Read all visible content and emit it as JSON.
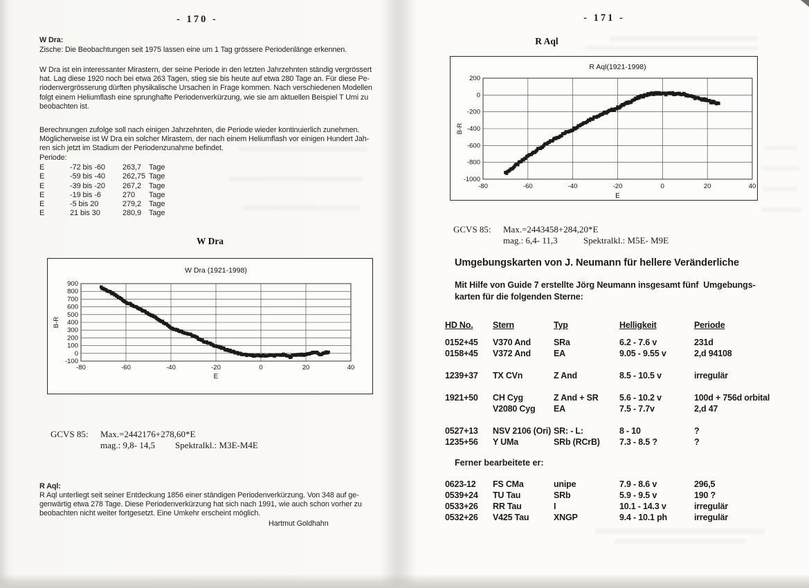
{
  "left_page": {
    "page_number": "- 170 -",
    "w_dra": {
      "heading": "W Dra:",
      "intro": "Zische: Die Beobachtungen seit 1975 lassen eine um 1 Tag grössere Periodenlänge erkennen.",
      "para1": "W Dra ist ein interessanter Mirastern, der seine Periode in den letzten Jahrzehnten ständig vergrössert\nhat. Lag diese 1920 noch bei etwa 263 Tagen, stieg sie bis heute auf etwa 280 Tage an. Für diese Pe-\nriodenvergrösserung dürften physikalische Ursachen in Frage kommen. Nach verschiedenen Modellen\nfolgt einem Heliumflash eine sprunghafte Periodenverkürzung, wie sie am aktuellen Beispiel T Umi zu\nbeobachten ist.",
      "para2": "Berechnungen zufolge soll nach einigen Jahrzehnten, die Periode wieder kontinuierlich zunehmen.\nMöglicherweise ist W Dra ein solcher Mirastern, der nach einem Heliumflash vor einigen Hundert Jah-\nren sich jetzt im Stadium der Periodenzunahme befindet.",
      "periode_label": "Periode:",
      "periods": [
        {
          "e": "E",
          "range": "-72 bis -60",
          "value": "263,7",
          "unit": "Tage"
        },
        {
          "e": "E",
          "range": "-59 bis -40",
          "value": "262,75",
          "unit": "Tage"
        },
        {
          "e": "E",
          "range": "-39 bis -20",
          "value": "267,2",
          "unit": "Tage"
        },
        {
          "e": "E",
          "range": "-19 bis -6",
          "value": "270",
          "unit": "Tage"
        },
        {
          "e": "E",
          "range": "-5 bis 20",
          "value": "279,2",
          "unit": "Tage"
        },
        {
          "e": "E",
          "range": "21 bis 30",
          "value": "280,9",
          "unit": "Tage"
        }
      ],
      "gcvs": {
        "label": "GCVS 85:",
        "max": "Max.=2442176+278,60*E",
        "mag": "mag.: 9,8- 14,5",
        "spektral": "Spektralkl.: M3E-M4E"
      }
    },
    "r_aql": {
      "heading": "R Aql:",
      "text": "R Aql unterliegt seit seiner Entdeckung 1856 einer ständigen Periodenverkürzung. Von 348 auf ge-\ngenwärtig etwa 278 Tage. Diese Periodenverkürzung hat sich nach 1991, wie auch schon vorher zu\nbeobachten nicht weiter fortgesetzt. Eine Umkehr erscheint möglich.",
      "signature": "Hartmut Goldhahn"
    }
  },
  "right_page": {
    "page_number": "- 171 -",
    "gcvs": {
      "label": "GCVS 85:",
      "max": "Max.=2443458+284,20*E",
      "mag": "mag.: 6,4- 11,3",
      "spektral": "Spektralkl.: M5E- M9E"
    },
    "umgebungskarten": {
      "heading": "Umgebungskarten von J. Neumann für hellere Veränderliche",
      "intro": "Mit Hilfe von Guide 7 erstellte Jörg Neumann insgesamt fünf  Umgebungs-\nkarten für die folgenden Sterne:",
      "headers": {
        "hd": "HD No.",
        "stern": "Stern",
        "typ": "Typ",
        "helligkeit": "Helligkeit",
        "periode": "Periode"
      },
      "stars": [
        {
          "hd": "0152+45",
          "stern": "V370 And",
          "typ": "SRa",
          "helligkeit": "6.2 - 7.6 v",
          "periode": "231d"
        },
        {
          "hd": "0158+45",
          "stern": "V372 And",
          "typ": "EA",
          "helligkeit": "9.05 - 9.55 v",
          "periode": "2,d 94108"
        },
        {
          "hd": "1239+37",
          "stern": "TX CVn",
          "typ": "Z And",
          "helligkeit": "8.5 - 10.5 v",
          "periode": "irregulär",
          "gap": true
        },
        {
          "hd": "1921+50",
          "stern": "CH Cyg",
          "typ": "Z And + SR",
          "helligkeit": "5.6 - 10.2 v",
          "periode": "100d + 756d orbital",
          "gap": true
        },
        {
          "hd": "",
          "stern": "V2080 Cyg",
          "typ": "EA",
          "helligkeit": "7.5 - 7.7v",
          "periode": "2,d 47"
        },
        {
          "hd": "0527+13",
          "stern": "NSV 2106 (Ori)",
          "typ": "SR: - L:",
          "helligkeit": "8 - 10",
          "periode": "?",
          "gap": true
        },
        {
          "hd": "1235+56",
          "stern": "Y UMa",
          "typ": "SRb (RCrB)",
          "helligkeit": "7.3 - 8.5 ?",
          "periode": "?"
        }
      ],
      "ferner_label": "Ferner bearbeitete er:",
      "more_stars": [
        {
          "hd": "0623-12",
          "stern": "FS CMa",
          "typ": "unipe",
          "helligkeit": "7.9 - 8.6 v",
          "periode": "296,5"
        },
        {
          "hd": "0539+24",
          "stern": "TU Tau",
          "typ": "SRb",
          "helligkeit": "5.9 - 9.5 v",
          "periode": "190 ?"
        },
        {
          "hd": "0533+26",
          "stern": "RR Tau",
          "typ": "I",
          "helligkeit": "10.1 - 14.3 v",
          "periode": "irregulär"
        },
        {
          "hd": "0532+26",
          "stern": "V425 Tau",
          "typ": "XNGP",
          "helligkeit": "9.4 - 10.1 ph",
          "periode": "irregulär"
        }
      ]
    }
  },
  "chart_data": [
    {
      "type": "scatter",
      "page_heading": "W Dra",
      "title": "W Dra (1921-1998)",
      "xlabel": "E",
      "ylabel": "B-R",
      "xlim": [
        -80,
        40
      ],
      "ylim": [
        -100,
        900
      ],
      "xticks": [
        -80,
        -60,
        -40,
        -20,
        0,
        20,
        40
      ],
      "yticks": [
        900,
        800,
        700,
        600,
        500,
        400,
        300,
        200,
        100,
        0,
        -100
      ],
      "grid": true,
      "legend": "none",
      "marker_color": "#1b1b1b",
      "jitter": 16,
      "anchors": [
        [
          -71,
          850
        ],
        [
          -68,
          805
        ],
        [
          -65,
          755
        ],
        [
          -62,
          700
        ],
        [
          -60,
          660
        ],
        [
          -57,
          620
        ],
        [
          -55,
          585
        ],
        [
          -52,
          545
        ],
        [
          -50,
          515
        ],
        [
          -47,
          465
        ],
        [
          -45,
          430
        ],
        [
          -42,
          380
        ],
        [
          -40,
          330
        ],
        [
          -37,
          300
        ],
        [
          -35,
          278
        ],
        [
          -32,
          248
        ],
        [
          -30,
          225
        ],
        [
          -27,
          180
        ],
        [
          -25,
          150
        ],
        [
          -22,
          118
        ],
        [
          -20,
          95
        ],
        [
          -17,
          65
        ],
        [
          -15,
          45
        ],
        [
          -12,
          18
        ],
        [
          -10,
          0
        ],
        [
          -8,
          -15
        ],
        [
          -5,
          -25
        ],
        [
          -2,
          -30
        ],
        [
          0,
          -30
        ],
        [
          2,
          -28
        ],
        [
          4,
          -25
        ],
        [
          6,
          -28
        ],
        [
          8,
          -22
        ],
        [
          10,
          -18
        ],
        [
          12,
          -35
        ],
        [
          13,
          -45
        ],
        [
          14,
          -30
        ],
        [
          15,
          -20
        ],
        [
          17,
          -15
        ],
        [
          19,
          -22
        ],
        [
          20,
          -12
        ],
        [
          22,
          0
        ],
        [
          23,
          8
        ],
        [
          24,
          12
        ],
        [
          25,
          5
        ],
        [
          26,
          -8
        ],
        [
          27,
          -18
        ],
        [
          28,
          5
        ],
        [
          29,
          10
        ],
        [
          30,
          15
        ]
      ]
    },
    {
      "type": "scatter",
      "page_heading": "R Aql",
      "title": "R Aql(1921-1998)",
      "xlabel": "E",
      "ylabel": "B-R",
      "xlim": [
        -80,
        40
      ],
      "ylim": [
        -1000,
        200
      ],
      "xticks": [
        -80,
        -60,
        -40,
        -20,
        0,
        20,
        40
      ],
      "yticks": [
        200,
        0,
        -200,
        -400,
        -600,
        -800,
        -1000
      ],
      "grid": true,
      "legend": "none",
      "marker_color": "#1b1b1b",
      "jitter": 24,
      "anchors": [
        [
          -70,
          -930
        ],
        [
          -68,
          -890
        ],
        [
          -66,
          -850
        ],
        [
          -64,
          -810
        ],
        [
          -62,
          -770
        ],
        [
          -60,
          -725
        ],
        [
          -58,
          -688
        ],
        [
          -56,
          -655
        ],
        [
          -55,
          -640
        ],
        [
          -53,
          -605
        ],
        [
          -51,
          -572
        ],
        [
          -50,
          -555
        ],
        [
          -48,
          -520
        ],
        [
          -46,
          -490
        ],
        [
          -45,
          -475
        ],
        [
          -43,
          -445
        ],
        [
          -41,
          -420
        ],
        [
          -40,
          -408
        ],
        [
          -38,
          -375
        ],
        [
          -36,
          -345
        ],
        [
          -35,
          -330
        ],
        [
          -33,
          -300
        ],
        [
          -31,
          -275
        ],
        [
          -30,
          -260
        ],
        [
          -28,
          -238
        ],
        [
          -26,
          -216
        ],
        [
          -25,
          -206
        ],
        [
          -23,
          -184
        ],
        [
          -21,
          -164
        ],
        [
          -20,
          -153
        ],
        [
          -18,
          -124
        ],
        [
          -16,
          -98
        ],
        [
          -15,
          -86
        ],
        [
          -13,
          -60
        ],
        [
          -11,
          -36
        ],
        [
          -10,
          -24
        ],
        [
          -8,
          -4
        ],
        [
          -6,
          8
        ],
        [
          -5,
          15
        ],
        [
          -3,
          20
        ],
        [
          -1,
          18
        ],
        [
          0,
          15
        ],
        [
          2,
          12
        ],
        [
          3,
          15
        ],
        [
          5,
          18
        ],
        [
          6,
          12
        ],
        [
          8,
          8
        ],
        [
          9,
          12
        ],
        [
          10,
          5
        ],
        [
          11,
          0
        ],
        [
          12,
          -10
        ],
        [
          13,
          -18
        ],
        [
          14,
          -26
        ],
        [
          15,
          -35
        ],
        [
          16,
          -42
        ],
        [
          17,
          -48
        ],
        [
          18,
          -55
        ],
        [
          19,
          -60
        ],
        [
          20,
          -66
        ],
        [
          21,
          -75
        ],
        [
          22,
          -82
        ],
        [
          23,
          -88
        ],
        [
          24,
          -95
        ],
        [
          25,
          -100
        ]
      ]
    }
  ]
}
